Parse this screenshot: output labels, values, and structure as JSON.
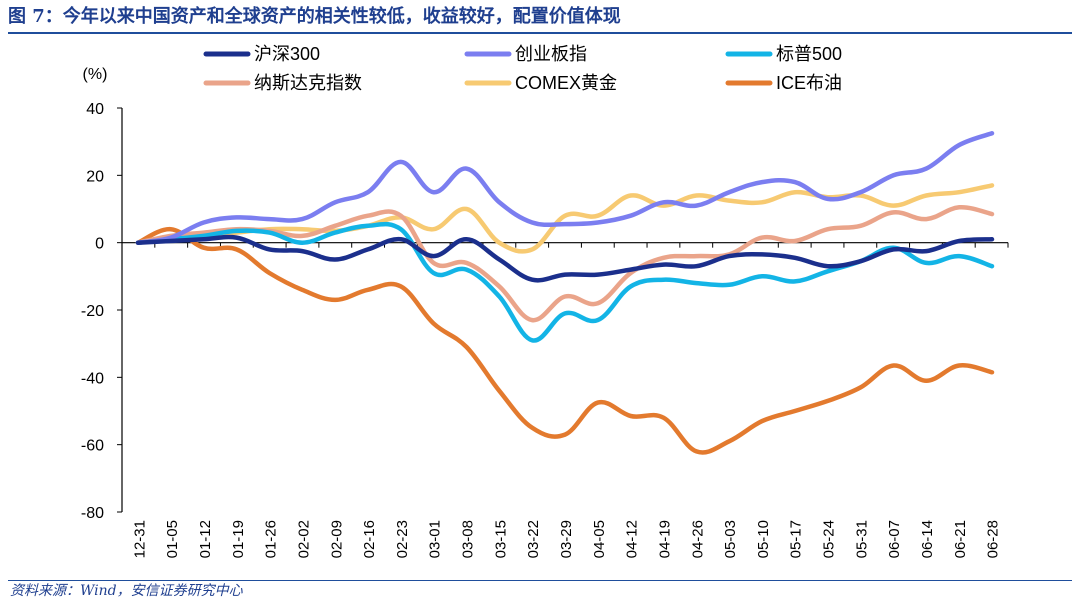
{
  "header": {
    "title": "图 7：今年以来中国资产和全球资产的相关性较低，收益较好，配置价值体现"
  },
  "footer": {
    "source": "资料来源：Wind，安信证券研究中心"
  },
  "chart_data": {
    "type": "line",
    "ylabel": "(%)",
    "ylim": [
      -80,
      40
    ],
    "yticks": [
      40,
      20,
      0,
      -20,
      -40,
      -60,
      -80
    ],
    "grid": false,
    "legend_position": "top",
    "categories": [
      "12-31",
      "01-05",
      "01-12",
      "01-19",
      "01-26",
      "02-02",
      "02-09",
      "02-16",
      "02-23",
      "03-01",
      "03-08",
      "03-15",
      "03-22",
      "03-29",
      "04-05",
      "04-12",
      "04-19",
      "04-26",
      "05-03",
      "05-10",
      "05-17",
      "05-24",
      "05-31",
      "06-07",
      "06-14",
      "06-21",
      "06-28"
    ],
    "series": [
      {
        "name": "沪深300",
        "color": "#1b2f8c",
        "values": [
          0,
          0.5,
          1,
          1.5,
          -2,
          -2.5,
          -5,
          -2,
          1,
          -4,
          1,
          -5,
          -11,
          -9.5,
          -9.5,
          -8,
          -6.5,
          -7,
          -4,
          -3.5,
          -4.5,
          -7,
          -5.5,
          -2,
          -2.5,
          0.5,
          1
        ]
      },
      {
        "name": "创业板指",
        "color": "#7b7ef0",
        "values": [
          0,
          1.5,
          6,
          7.5,
          7,
          7,
          12,
          15,
          24,
          15,
          22,
          12,
          6,
          5.5,
          6,
          8,
          12,
          11,
          15,
          18,
          18,
          13,
          15,
          20,
          22,
          29,
          32.5
        ]
      },
      {
        "name": "标普500",
        "color": "#13b4e6",
        "values": [
          0,
          1,
          2,
          3.5,
          3,
          0,
          3,
          5,
          4,
          -9,
          -8,
          -16,
          -29,
          -21,
          -23,
          -13,
          -11,
          -12,
          -12.5,
          -10,
          -11.5,
          -8.5,
          -5.5,
          -1.5,
          -6,
          -4,
          -7
        ]
      },
      {
        "name": "纳斯达克指数",
        "color": "#eaa48a",
        "values": [
          0,
          2,
          3,
          4,
          3.5,
          2,
          5,
          8,
          8,
          -6,
          -6,
          -13,
          -23,
          -16,
          -18,
          -9,
          -4.5,
          -4,
          -3.5,
          1.5,
          0.5,
          4,
          5,
          9,
          7,
          10.5,
          8.5
        ]
      },
      {
        "name": "COMEX黄金",
        "color": "#f7ca72",
        "values": [
          0,
          1,
          2,
          3,
          4,
          4,
          3.5,
          5,
          7.5,
          4,
          10,
          0,
          -2,
          8,
          8,
          14,
          11,
          14,
          12.5,
          12,
          15,
          13.5,
          14,
          11,
          14,
          15,
          17
        ]
      },
      {
        "name": "ICE布油",
        "color": "#e37a2e",
        "values": [
          0,
          4,
          -1.5,
          -2,
          -9,
          -14,
          -17,
          -14,
          -13,
          -24,
          -31,
          -44,
          -55,
          -57,
          -47.5,
          -51.5,
          -52,
          -62,
          -59,
          -53,
          -50,
          -47,
          -43,
          -36.5,
          -41,
          -36.5,
          -38.5
        ]
      }
    ]
  }
}
